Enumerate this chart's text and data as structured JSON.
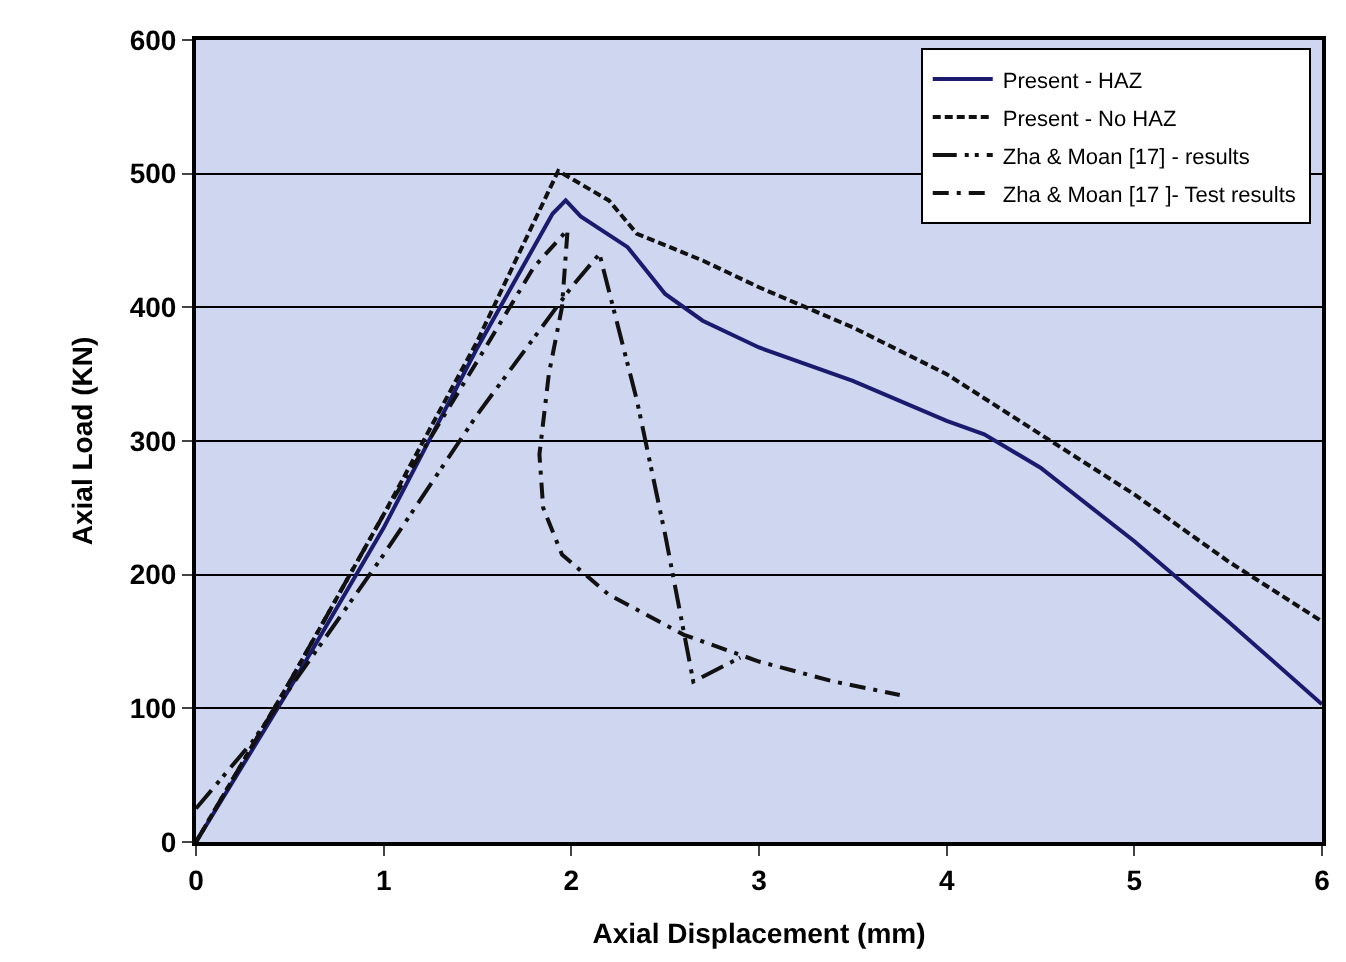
{
  "chart_data": {
    "type": "line",
    "xlabel": "Axial Displacement (mm)",
    "ylabel": "Axial Load (KN)",
    "xlim": [
      0,
      6
    ],
    "ylim": [
      0,
      600
    ],
    "xticks": [
      0,
      1,
      2,
      3,
      4,
      5,
      6
    ],
    "yticks": [
      0,
      100,
      200,
      300,
      400,
      500,
      600
    ],
    "grid": "y",
    "legend": "top right",
    "marker": "none",
    "series": [
      {
        "name": "Present - HAZ",
        "color": "#1a1a6e",
        "line_style": "solid",
        "x": [
          0,
          0.5,
          1,
          1.5,
          1.9,
          1.97,
          2.05,
          2.3,
          2.5,
          2.7,
          3,
          3.5,
          4,
          4.2,
          4.5,
          5,
          5.5,
          6
        ],
        "values": [
          0,
          115,
          235,
          370,
          470,
          480,
          468,
          445,
          410,
          390,
          370,
          345,
          315,
          305,
          280,
          225,
          165,
          103
        ]
      },
      {
        "name": "Present - No HAZ",
        "color": "#111111",
        "line_style": "dashed",
        "x": [
          0,
          0.5,
          1,
          1.5,
          1.93,
          2.2,
          2.35,
          2.7,
          3,
          3.5,
          4,
          4.5,
          5,
          5.5,
          6
        ],
        "values": [
          0,
          120,
          245,
          375,
          502,
          480,
          455,
          435,
          415,
          385,
          350,
          305,
          260,
          210,
          165
        ]
      },
      {
        "name": "Zha & Moan [17] - results",
        "color": "#111111",
        "line_style": "longdashdotdot",
        "x": [
          0,
          0.3,
          1,
          1.5,
          2,
          2.15,
          2.35,
          2.5,
          2.65,
          2.9
        ],
        "values": [
          25,
          75,
          215,
          320,
          415,
          440,
          330,
          230,
          120,
          138
        ]
      },
      {
        "name": "Zha & Moan [17 ]- Test results",
        "color": "#111111",
        "line_style": "dashdot",
        "x": [
          0,
          0.5,
          1,
          1.5,
          1.8,
          1.98,
          1.95,
          1.88,
          1.83,
          1.85,
          1.95,
          2.2,
          2.6,
          3,
          3.4,
          3.75
        ],
        "values": [
          0,
          120,
          245,
          360,
          430,
          458,
          400,
          350,
          290,
          250,
          215,
          185,
          155,
          135,
          120,
          110
        ]
      }
    ]
  }
}
